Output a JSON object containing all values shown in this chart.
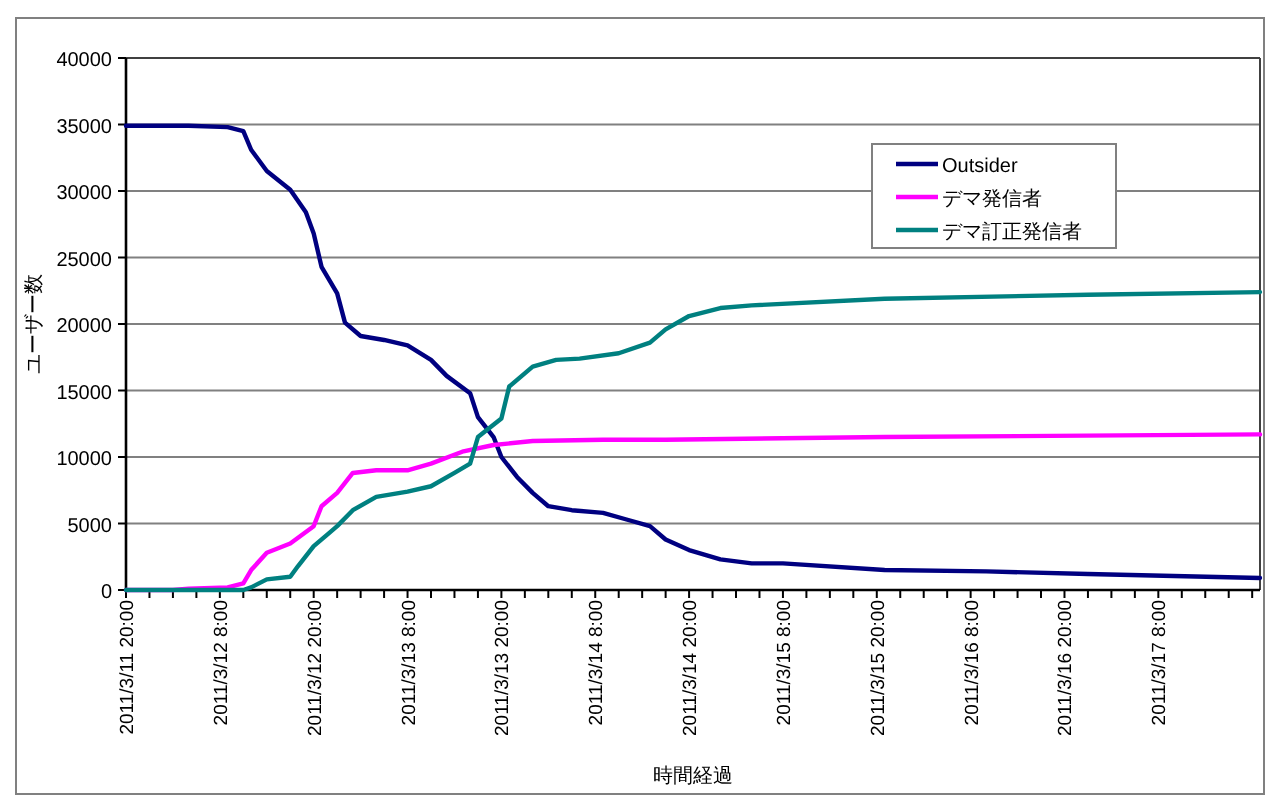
{
  "chart_data": {
    "type": "line",
    "xlabel": "時間経過",
    "ylabel": "ユーザー数",
    "xlim": [
      "2011-03-11T20:00",
      "2011-03-17T21:00"
    ],
    "ylim": [
      0,
      40000
    ],
    "yticks": [
      0,
      5000,
      10000,
      15000,
      20000,
      25000,
      30000,
      35000,
      40000
    ],
    "xticks": [
      {
        "value": "2011-03-11T20:00",
        "label": "2011/3/11 20:00"
      },
      {
        "value": "2011-03-11T23:00",
        "label": null
      },
      {
        "value": "2011-03-12T02:00",
        "label": null
      },
      {
        "value": "2011-03-12T05:00",
        "label": null
      },
      {
        "value": "2011-03-12T08:00",
        "label": "2011/3/12 8:00"
      },
      {
        "value": "2011-03-12T11:00",
        "label": null
      },
      {
        "value": "2011-03-12T14:00",
        "label": null
      },
      {
        "value": "2011-03-12T17:00",
        "label": null
      },
      {
        "value": "2011-03-12T20:00",
        "label": "2011/3/12 20:00"
      },
      {
        "value": "2011-03-12T23:00",
        "label": null
      },
      {
        "value": "2011-03-13T02:00",
        "label": null
      },
      {
        "value": "2011-03-13T05:00",
        "label": null
      },
      {
        "value": "2011-03-13T08:00",
        "label": "2011/3/13 8:00"
      },
      {
        "value": "2011-03-13T11:00",
        "label": null
      },
      {
        "value": "2011-03-13T14:00",
        "label": null
      },
      {
        "value": "2011-03-13T17:00",
        "label": null
      },
      {
        "value": "2011-03-13T20:00",
        "label": "2011/3/13 20:00"
      },
      {
        "value": "2011-03-13T23:00",
        "label": null
      },
      {
        "value": "2011-03-14T02:00",
        "label": null
      },
      {
        "value": "2011-03-14T05:00",
        "label": null
      },
      {
        "value": "2011-03-14T08:00",
        "label": "2011/3/14 8:00"
      },
      {
        "value": "2011-03-14T11:00",
        "label": null
      },
      {
        "value": "2011-03-14T14:00",
        "label": null
      },
      {
        "value": "2011-03-14T17:00",
        "label": null
      },
      {
        "value": "2011-03-14T20:00",
        "label": "2011/3/14 20:00"
      },
      {
        "value": "2011-03-14T23:00",
        "label": null
      },
      {
        "value": "2011-03-15T02:00",
        "label": null
      },
      {
        "value": "2011-03-15T05:00",
        "label": null
      },
      {
        "value": "2011-03-15T08:00",
        "label": "2011/3/15 8:00"
      },
      {
        "value": "2011-03-15T11:00",
        "label": null
      },
      {
        "value": "2011-03-15T14:00",
        "label": null
      },
      {
        "value": "2011-03-15T17:00",
        "label": null
      },
      {
        "value": "2011-03-15T20:00",
        "label": "2011/3/15 20:00"
      },
      {
        "value": "2011-03-15T23:00",
        "label": null
      },
      {
        "value": "2011-03-16T02:00",
        "label": null
      },
      {
        "value": "2011-03-16T05:00",
        "label": null
      },
      {
        "value": "2011-03-16T08:00",
        "label": "2011/3/16 8:00"
      },
      {
        "value": "2011-03-16T11:00",
        "label": null
      },
      {
        "value": "2011-03-16T14:00",
        "label": null
      },
      {
        "value": "2011-03-16T17:00",
        "label": null
      },
      {
        "value": "2011-03-16T20:00",
        "label": "2011/3/16 20:00"
      },
      {
        "value": "2011-03-16T23:00",
        "label": null
      },
      {
        "value": "2011-03-17T02:00",
        "label": null
      },
      {
        "value": "2011-03-17T05:00",
        "label": null
      },
      {
        "value": "2011-03-17T08:00",
        "label": "2011/3/17 8:00"
      },
      {
        "value": "2011-03-17T11:00",
        "label": null
      },
      {
        "value": "2011-03-17T14:00",
        "label": null
      },
      {
        "value": "2011-03-17T17:00",
        "label": null
      },
      {
        "value": "2011-03-17T20:00",
        "label": null
      }
    ],
    "grid": "y",
    "legend": "top right",
    "marker": "none",
    "line_style": "solid",
    "series": [
      {
        "name": "Outsider",
        "color": "#000080",
        "x": [
          "2011-03-11T20:00",
          "2011-03-12T04:00",
          "2011-03-12T09:00",
          "2011-03-12T11:00",
          "2011-03-12T12:00",
          "2011-03-12T14:00",
          "2011-03-12T17:00",
          "2011-03-12T19:00",
          "2011-03-12T20:00",
          "2011-03-12T21:00",
          "2011-03-12T23:00",
          "2011-03-13T00:00",
          "2011-03-13T02:00",
          "2011-03-13T05:00",
          "2011-03-13T08:00",
          "2011-03-13T11:00",
          "2011-03-13T13:00",
          "2011-03-13T16:00",
          "2011-03-13T17:00",
          "2011-03-13T19:00",
          "2011-03-13T20:00",
          "2011-03-13T22:00",
          "2011-03-14T00:00",
          "2011-03-14T02:00",
          "2011-03-14T05:00",
          "2011-03-14T09:00",
          "2011-03-14T12:00",
          "2011-03-14T15:00",
          "2011-03-14T17:00",
          "2011-03-14T20:00",
          "2011-03-15T00:00",
          "2011-03-15T04:00",
          "2011-03-15T08:00",
          "2011-03-15T21:00",
          "2011-03-16T10:00",
          "2011-03-16T23:00",
          "2011-03-17T21:00"
        ],
        "values": [
          34900,
          34900,
          34800,
          34500,
          33100,
          31500,
          30100,
          28400,
          26800,
          24300,
          22300,
          20100,
          19100,
          18800,
          18400,
          17300,
          16100,
          14800,
          13000,
          11500,
          10000,
          8500,
          7300,
          6300,
          6000,
          5800,
          5300,
          4800,
          3800,
          3000,
          2300,
          2000,
          2000,
          1500,
          1400,
          1200,
          900
        ]
      },
      {
        "name": "デマ発信者",
        "color": "#ff00ff",
        "x": [
          "2011-03-11T20:00",
          "2011-03-12T02:00",
          "2011-03-12T04:00",
          "2011-03-12T09:00",
          "2011-03-12T11:00",
          "2011-03-12T12:00",
          "2011-03-12T14:00",
          "2011-03-12T17:00",
          "2011-03-12T20:00",
          "2011-03-12T21:00",
          "2011-03-12T23:00",
          "2011-03-13T01:00",
          "2011-03-13T04:00",
          "2011-03-13T08:00",
          "2011-03-13T11:00",
          "2011-03-13T15:00",
          "2011-03-13T19:00",
          "2011-03-14T00:00",
          "2011-03-14T09:00",
          "2011-03-14T17:00",
          "2011-03-15T21:00",
          "2011-03-17T21:00"
        ],
        "values": [
          0,
          0,
          100,
          200,
          500,
          1500,
          2800,
          3500,
          4800,
          6300,
          7300,
          8800,
          9000,
          9000,
          9500,
          10400,
          10900,
          11200,
          11300,
          11300,
          11500,
          11700
        ]
      },
      {
        "name": "デマ訂正発信者",
        "color": "#008080",
        "x": [
          "2011-03-11T20:00",
          "2011-03-12T11:00",
          "2011-03-12T12:00",
          "2011-03-12T14:00",
          "2011-03-12T17:00",
          "2011-03-12T18:00",
          "2011-03-12T20:00",
          "2011-03-12T22:00",
          "2011-03-12T23:00",
          "2011-03-13T01:00",
          "2011-03-13T04:00",
          "2011-03-13T08:00",
          "2011-03-13T11:00",
          "2011-03-13T14:00",
          "2011-03-13T16:00",
          "2011-03-13T17:00",
          "2011-03-13T20:00",
          "2011-03-13T21:00",
          "2011-03-14T00:00",
          "2011-03-14T03:00",
          "2011-03-14T06:00",
          "2011-03-14T11:00",
          "2011-03-14T15:00",
          "2011-03-14T17:00",
          "2011-03-14T20:00",
          "2011-03-15T00:00",
          "2011-03-15T04:00",
          "2011-03-15T21:00",
          "2011-03-16T23:00",
          "2011-03-17T21:00"
        ],
        "values": [
          0,
          0,
          200,
          800,
          1000,
          1800,
          3300,
          4300,
          4800,
          6000,
          7000,
          7400,
          7800,
          8800,
          9500,
          11500,
          12900,
          15300,
          16800,
          17300,
          17400,
          17800,
          18600,
          19600,
          20600,
          21200,
          21400,
          21900,
          22200,
          22400
        ]
      }
    ]
  }
}
